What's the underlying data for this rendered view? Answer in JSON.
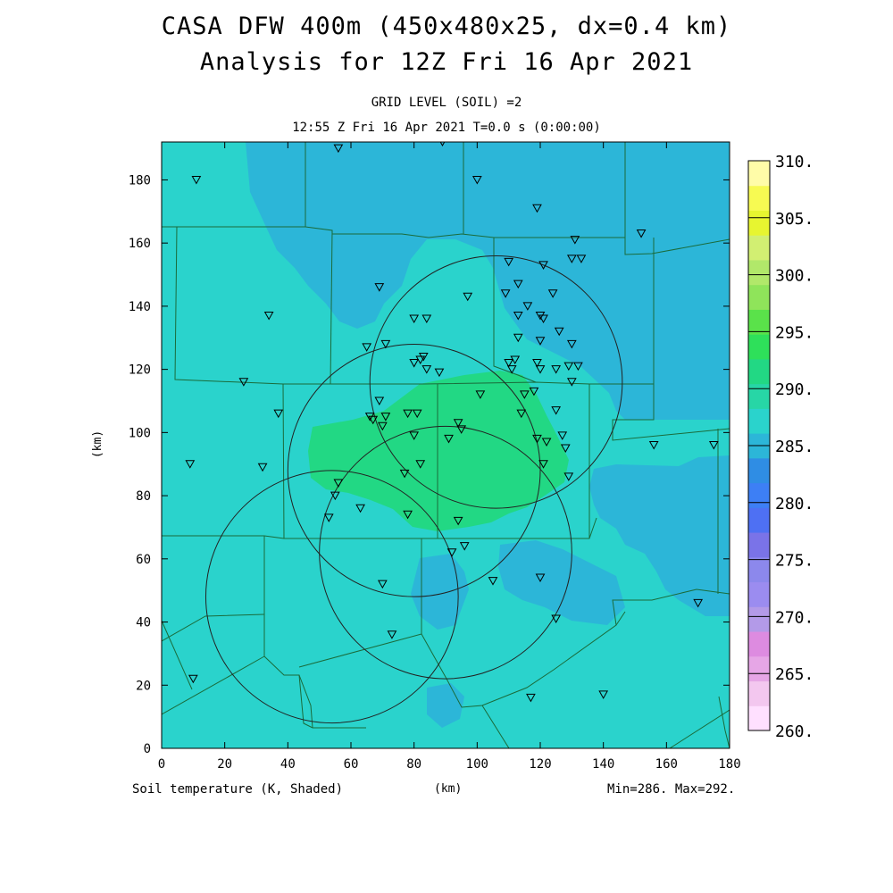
{
  "title": {
    "line1": "CASA DFW 400m (450x480x25, dx=0.4 km)",
    "line2": "Analysis for 12Z Fri 16 Apr 2021"
  },
  "subtitle": {
    "line1": "GRID LEVEL (SOIL) =2",
    "line2": "12:55 Z Fri 16 Apr 2021   T=0.0 s (0:00:00)"
  },
  "footer": {
    "field": "Soil temperature (K, Shaded)",
    "xunit": "(km)",
    "minmax": "Min=286. Max=292."
  },
  "chart_data": {
    "type": "heatmap",
    "xlabel": "(km)",
    "ylabel": "(km)",
    "xlim": [
      0,
      180
    ],
    "ylim": [
      0,
      192
    ],
    "x_ticks": [
      0,
      20,
      40,
      60,
      80,
      100,
      120,
      140,
      160,
      180
    ],
    "y_ticks": [
      0,
      20,
      40,
      60,
      80,
      100,
      120,
      140,
      160,
      180
    ],
    "colorbar": {
      "labels": [
        "260.",
        "265.",
        "270.",
        "275.",
        "280.",
        "285.",
        "290.",
        "295.",
        "300.",
        "305.",
        "310."
      ],
      "colors": [
        "#ffe0ff",
        "#f3c7ef",
        "#e6a6e6",
        "#dd8be0",
        "#b39ae8",
        "#9b8cf0",
        "#8c88ec",
        "#7a73e8",
        "#4e70f3",
        "#3d7ff5",
        "#2f8de4",
        "#2cb6d8",
        "#2ad3cc",
        "#27d6a6",
        "#22d884",
        "#2ee05a",
        "#5ae24a",
        "#8fe45a",
        "#b1e86a",
        "#d2ef72",
        "#e7f530",
        "#f7fa52",
        "#fffca8"
      ]
    },
    "field_colors": {
      "background": "#2ad3cc",
      "cool": "#2cb6d8",
      "warm": "#22d884"
    },
    "radar_circles": [
      {
        "cx": 54,
        "cy": 48,
        "r": 40
      },
      {
        "cx": 80,
        "cy": 88,
        "r": 40
      },
      {
        "cx": 106,
        "cy": 116,
        "r": 40
      },
      {
        "cx": 90,
        "cy": 62,
        "r": 40
      }
    ],
    "stations": [
      [
        11,
        180
      ],
      [
        56,
        190
      ],
      [
        89,
        192
      ],
      [
        100,
        180
      ],
      [
        119,
        171
      ],
      [
        152,
        163
      ],
      [
        131,
        161
      ],
      [
        121,
        153
      ],
      [
        130,
        155
      ],
      [
        133,
        155
      ],
      [
        110,
        154
      ],
      [
        113,
        147
      ],
      [
        124,
        144
      ],
      [
        109,
        144
      ],
      [
        97,
        143
      ],
      [
        116,
        140
      ],
      [
        113,
        137
      ],
      [
        120,
        137
      ],
      [
        121,
        136
      ],
      [
        84,
        136
      ],
      [
        80,
        136
      ],
      [
        34,
        137
      ],
      [
        69,
        146
      ],
      [
        126,
        132
      ],
      [
        120,
        129
      ],
      [
        113,
        130
      ],
      [
        130,
        128
      ],
      [
        65,
        127
      ],
      [
        71,
        128
      ],
      [
        83,
        124
      ],
      [
        82,
        123
      ],
      [
        80,
        122
      ],
      [
        110,
        122
      ],
      [
        112,
        123
      ],
      [
        119,
        122
      ],
      [
        129,
        121
      ],
      [
        132,
        121
      ],
      [
        111,
        120
      ],
      [
        120,
        120
      ],
      [
        125,
        120
      ],
      [
        84,
        120
      ],
      [
        88,
        119
      ],
      [
        130,
        116
      ],
      [
        26,
        116
      ],
      [
        101,
        112
      ],
      [
        118,
        113
      ],
      [
        115,
        112
      ],
      [
        69,
        110
      ],
      [
        37,
        106
      ],
      [
        125,
        107
      ],
      [
        66,
        105
      ],
      [
        67,
        104
      ],
      [
        71,
        105
      ],
      [
        78,
        106
      ],
      [
        81,
        106
      ],
      [
        114,
        106
      ],
      [
        94,
        103
      ],
      [
        70,
        102
      ],
      [
        127,
        99
      ],
      [
        128,
        95
      ],
      [
        95,
        101
      ],
      [
        80,
        99
      ],
      [
        91,
        98
      ],
      [
        119,
        98
      ],
      [
        122,
        97
      ],
      [
        156,
        96
      ],
      [
        175,
        96
      ],
      [
        9,
        90
      ],
      [
        32,
        89
      ],
      [
        82,
        90
      ],
      [
        121,
        90
      ],
      [
        129,
        86
      ],
      [
        77,
        87
      ],
      [
        56,
        84
      ],
      [
        55,
        80
      ],
      [
        63,
        76
      ],
      [
        53,
        73
      ],
      [
        78,
        74
      ],
      [
        94,
        72
      ],
      [
        96,
        64
      ],
      [
        92,
        62
      ],
      [
        120,
        54
      ],
      [
        105,
        53
      ],
      [
        70,
        52
      ],
      [
        125,
        41
      ],
      [
        73,
        36
      ],
      [
        170,
        46
      ],
      [
        10,
        22
      ],
      [
        117,
        16
      ],
      [
        140,
        17
      ]
    ]
  }
}
